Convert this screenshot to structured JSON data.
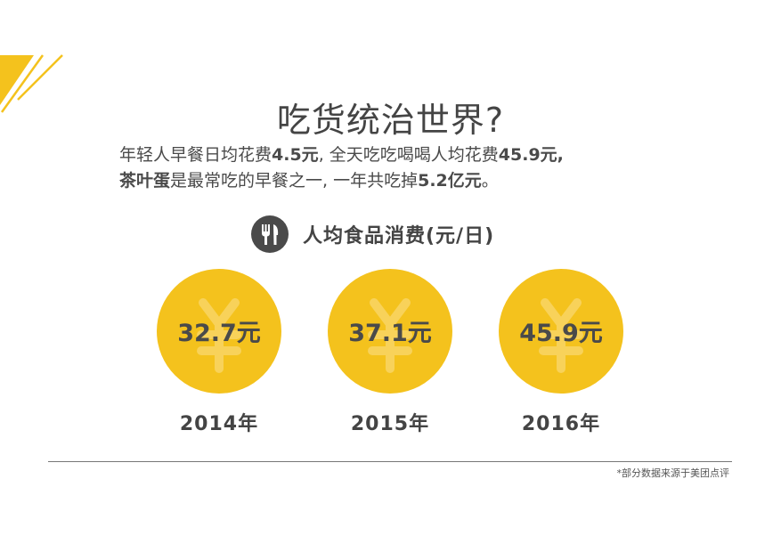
{
  "colors": {
    "accent": "#f4c21d",
    "text": "#444444"
  },
  "title": "吃货统治世界?",
  "description": {
    "line1": {
      "p1": "年轻人早餐日均花费",
      "v1": "4.5元",
      "p2": ", 全天吃吃喝喝人均花费",
      "v2": "45.9元,"
    },
    "line2": {
      "v1": "茶叶蛋",
      "p1": "是最常吃的早餐之一, 一年共吃掉",
      "v2": "5.2亿元",
      "p2": "。"
    }
  },
  "section": {
    "icon": "fork-knife-icon",
    "title": "人均食品消费(元/日)"
  },
  "coins": [
    {
      "value": "32.7元",
      "year": "2014年"
    },
    {
      "value": "37.1元",
      "year": "2015年"
    },
    {
      "value": "45.9元",
      "year": "2016年"
    }
  ],
  "source": "*部分数据来源于美团点评"
}
